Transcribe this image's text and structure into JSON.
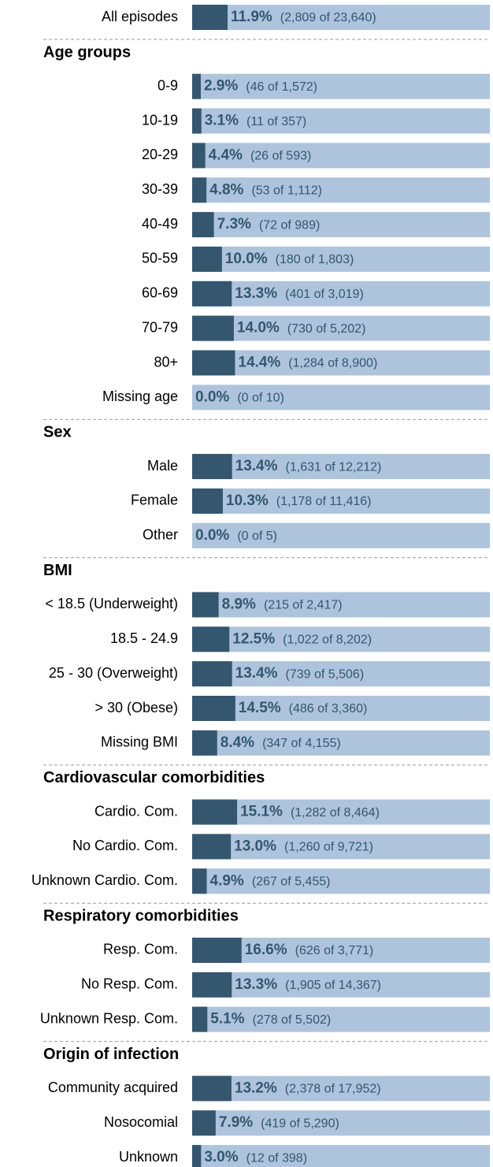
{
  "chart_data": {
    "type": "bar",
    "xlim": [
      0,
      100
    ],
    "color": "#34566f",
    "track_color": "#adc4dc",
    "groups": [
      {
        "categories": [
          "All episodes"
        ],
        "values": [
          11.9
        ],
        "value_labels": [
          "11.9%"
        ],
        "counts": [
          "(2,809 of 23,640)"
        ]
      },
      {
        "title": "Age groups",
        "categories": [
          "0-9",
          "10-19",
          "20-29",
          "30-39",
          "40-49",
          "50-59",
          "60-69",
          "70-79",
          "80+",
          "Missing age"
        ],
        "values": [
          2.9,
          3.1,
          4.4,
          4.8,
          7.3,
          10.0,
          13.3,
          14.0,
          14.4,
          0.0
        ],
        "value_labels": [
          "2.9%",
          "3.1%",
          "4.4%",
          "4.8%",
          "7.3%",
          "10.0%",
          "13.3%",
          "14.0%",
          "14.4%",
          "0.0%"
        ],
        "counts": [
          "(46 of 1,572)",
          "(11 of 357)",
          "(26 of 593)",
          "(53 of 1,112)",
          "(72 of 989)",
          "(180 of 1,803)",
          "(401 of 3,019)",
          "(730 of 5,202)",
          "(1,284 of 8,900)",
          "(0 of 10)"
        ]
      },
      {
        "title": "Sex",
        "categories": [
          "Male",
          "Female",
          "Other"
        ],
        "values": [
          13.4,
          10.3,
          0.0
        ],
        "value_labels": [
          "13.4%",
          "10.3%",
          "0.0%"
        ],
        "counts": [
          "(1,631 of 12,212)",
          "(1,178 of 11,416)",
          "(0 of 5)"
        ]
      },
      {
        "title": "BMI",
        "categories": [
          "< 18.5 (Underweight)",
          "18.5 - 24.9",
          "25 - 30 (Overweight)",
          "> 30 (Obese)",
          "Missing BMI"
        ],
        "values": [
          8.9,
          12.5,
          13.4,
          14.5,
          8.4
        ],
        "value_labels": [
          "8.9%",
          "12.5%",
          "13.4%",
          "14.5%",
          "8.4%"
        ],
        "counts": [
          "(215 of 2,417)",
          "(1,022 of 8,202)",
          "(739 of 5,506)",
          "(486 of 3,360)",
          "(347 of 4,155)"
        ]
      },
      {
        "title": "Cardiovascular comorbidities",
        "categories": [
          "Cardio. Com.",
          "No Cardio. Com.",
          "Unknown Cardio. Com."
        ],
        "values": [
          15.1,
          13.0,
          4.9
        ],
        "value_labels": [
          "15.1%",
          "13.0%",
          "4.9%"
        ],
        "counts": [
          "(1,282 of 8,464)",
          "(1,260 of 9,721)",
          "(267 of 5,455)"
        ]
      },
      {
        "title": "Respiratory comorbidities",
        "categories": [
          "Resp. Com.",
          "No Resp. Com.",
          "Unknown Resp. Com."
        ],
        "values": [
          16.6,
          13.3,
          5.1
        ],
        "value_labels": [
          "16.6%",
          "13.3%",
          "5.1%"
        ],
        "counts": [
          "(626 of 3,771)",
          "(1,905 of 14,367)",
          "(278 of 5,502)"
        ]
      },
      {
        "title": "Origin of infection",
        "categories": [
          "Community acquired",
          "Nosocomial",
          "Unknown"
        ],
        "values": [
          13.2,
          7.9,
          3.0
        ],
        "value_labels": [
          "13.2%",
          "7.9%",
          "3.0%"
        ],
        "counts": [
          "(2,378 of 17,952)",
          "(419 of 5,290)",
          "(12 of 398)"
        ]
      }
    ]
  }
}
